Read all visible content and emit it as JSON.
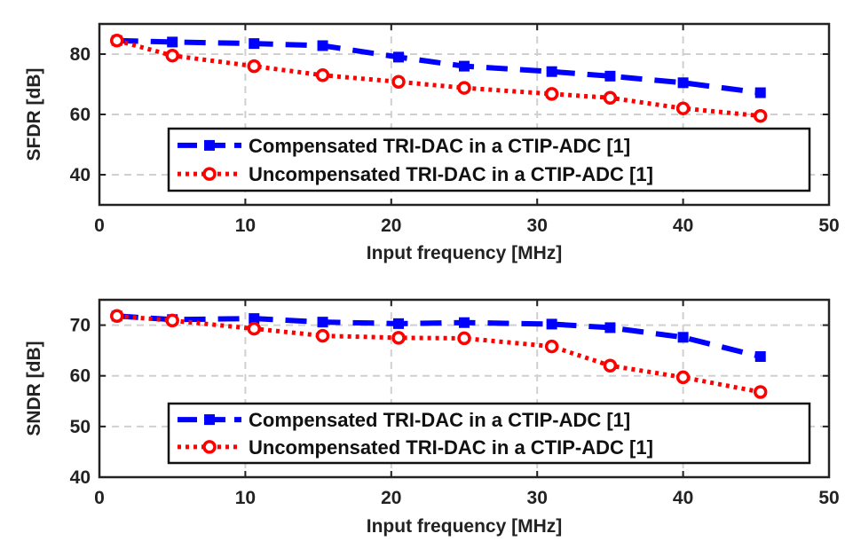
{
  "colors": {
    "compensated": "#0000ff",
    "uncompensated": "#ff0000",
    "grid": "#d0d0d0",
    "axis": "#222222"
  },
  "chart_data": [
    {
      "type": "line",
      "title": "",
      "xlabel": "Input frequency [MHz]",
      "ylabel": "SFDR [dB]",
      "xlim": [
        0,
        50
      ],
      "ylim": [
        30,
        90
      ],
      "xticks": [
        0,
        10,
        20,
        30,
        40,
        50
      ],
      "yticks": [
        40,
        60,
        80
      ],
      "grid": true,
      "legend_position": "bottom-right",
      "x": [
        1.2,
        5,
        10.6,
        15.3,
        20.5,
        25,
        31,
        35,
        40,
        45.3
      ],
      "series": [
        {
          "name": "Compensated TRI-DAC in a CTIP-ADC [1]",
          "style": "dashed-square",
          "values": [
            84.5,
            84,
            83.5,
            82.8,
            79,
            76,
            74.2,
            72.7,
            70.5,
            67.2
          ]
        },
        {
          "name": "Uncompensated TRI-DAC in a CTIP-ADC [1]",
          "style": "dotted-circle",
          "values": [
            84.5,
            79.5,
            76,
            73,
            70.8,
            68.8,
            66.8,
            65.5,
            62,
            59.5
          ]
        }
      ]
    },
    {
      "type": "line",
      "title": "",
      "xlabel": "Input frequency [MHz]",
      "ylabel": "SNDR [dB]",
      "xlim": [
        0,
        50
      ],
      "ylim": [
        40,
        75
      ],
      "xticks": [
        0,
        10,
        20,
        30,
        40,
        50
      ],
      "yticks": [
        40,
        50,
        60,
        70
      ],
      "grid": true,
      "legend_position": "bottom-right",
      "x": [
        1.2,
        5,
        10.6,
        15.3,
        20.5,
        25,
        31,
        35,
        40,
        45.3
      ],
      "series": [
        {
          "name": "Compensated TRI-DAC in a CTIP-ADC [1]",
          "style": "dashed-square",
          "values": [
            71.8,
            71.1,
            71.3,
            70.6,
            70.3,
            70.5,
            70.2,
            69.5,
            67.6,
            63.8
          ]
        },
        {
          "name": "Uncompensated TRI-DAC in a CTIP-ADC [1]",
          "style": "dotted-circle",
          "values": [
            71.8,
            70.9,
            69.3,
            67.9,
            67.5,
            67.4,
            65.8,
            62,
            59.7,
            56.8
          ]
        }
      ]
    }
  ]
}
